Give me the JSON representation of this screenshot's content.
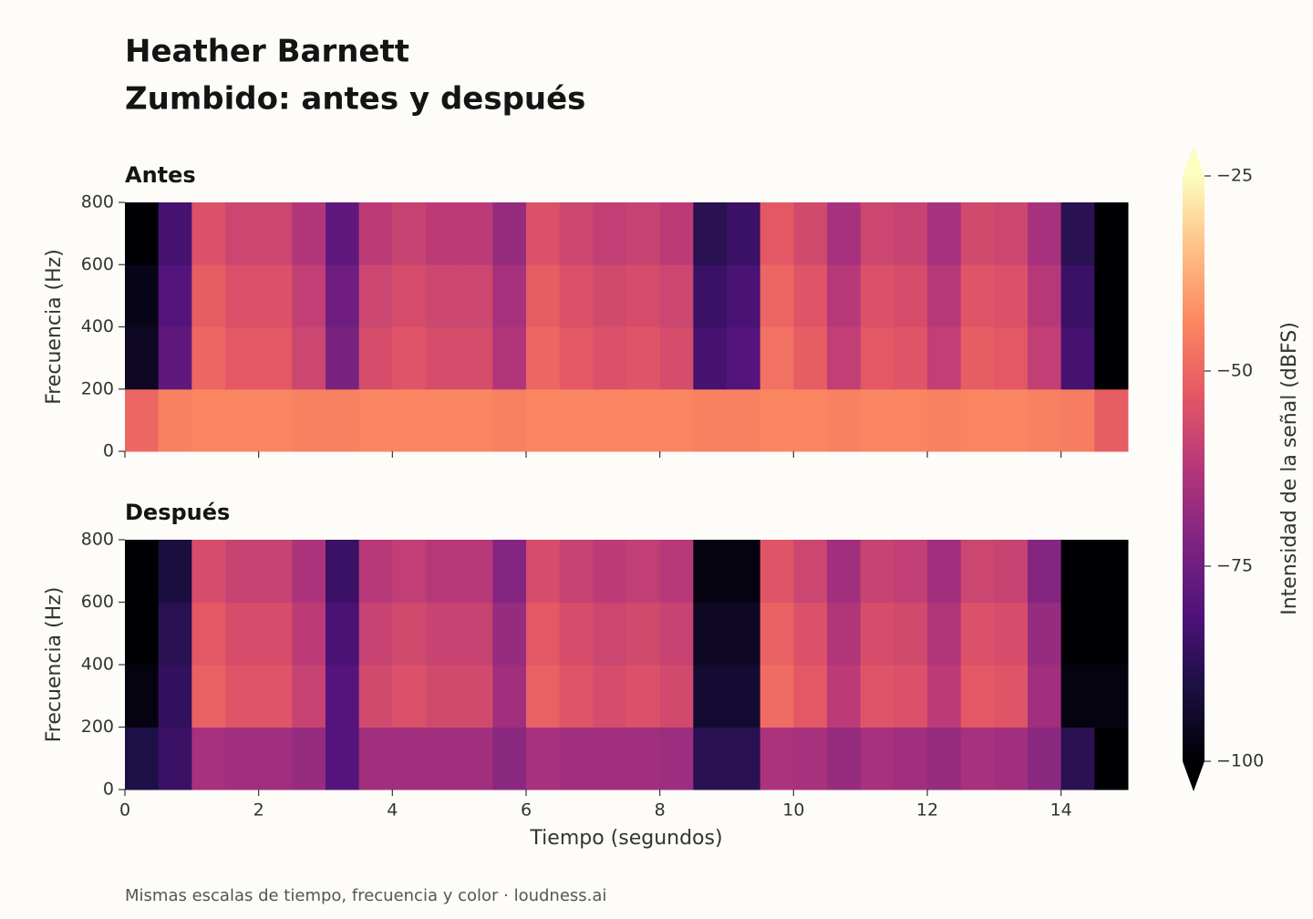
{
  "title": "Heather Barnett",
  "subtitle": "Zumbido: antes y después",
  "footer": "Mismas escalas de tiempo, frecuencia y color  ·  loudness.ai",
  "colorbar": {
    "label": "Intensidad de la señal (dBFS)",
    "cmap": "magma",
    "clim": [
      -100,
      -25
    ],
    "ticks": [
      {
        "value": -25,
        "label": "−25"
      },
      {
        "value": -50,
        "label": "−50"
      },
      {
        "value": -75,
        "label": "−75"
      },
      {
        "value": -100,
        "label": "−100"
      }
    ]
  },
  "chart_data": [
    {
      "type": "heatmap",
      "title": "Antes",
      "ylabel": "Frecuencia (Hz)",
      "xtick_labels": false,
      "bins": [
        0,
        0.5,
        1,
        1.5,
        2,
        2.5,
        3,
        3.5,
        4,
        4.5,
        5,
        5.5,
        6,
        6.5,
        7,
        7.5,
        8,
        8.5,
        9,
        9.5,
        10,
        10.5,
        11,
        11.5,
        12,
        12.5,
        13,
        13.5,
        14,
        14.5,
        15
      ],
      "ybins": [
        0,
        200,
        400,
        600,
        800
      ],
      "values": [
        [
          -50,
          -45,
          -44,
          -44,
          -44,
          -45,
          -45,
          -44,
          -44,
          -44,
          -44,
          -45,
          -44,
          -44,
          -44,
          -44,
          -44,
          -45,
          -45,
          -44,
          -44,
          -45,
          -44,
          -44,
          -45,
          -44,
          -44,
          -45,
          -46,
          -52
        ],
        [
          -95,
          -78,
          -50,
          -53,
          -53,
          -58,
          -73,
          -56,
          -54,
          -56,
          -56,
          -63,
          -50,
          -53,
          -55,
          -54,
          -56,
          -83,
          -80,
          -48,
          -52,
          -60,
          -53,
          -54,
          -60,
          -52,
          -53,
          -60,
          -83,
          -100
        ],
        [
          -97,
          -80,
          -52,
          -55,
          -55,
          -60,
          -75,
          -58,
          -56,
          -58,
          -58,
          -65,
          -52,
          -55,
          -57,
          -56,
          -58,
          -85,
          -82,
          -50,
          -54,
          -62,
          -55,
          -56,
          -62,
          -54,
          -55,
          -62,
          -85,
          -100
        ],
        [
          -100,
          -83,
          -55,
          -58,
          -58,
          -63,
          -78,
          -61,
          -59,
          -61,
          -61,
          -68,
          -55,
          -58,
          -60,
          -59,
          -61,
          -88,
          -85,
          -53,
          -57,
          -65,
          -58,
          -59,
          -65,
          -57,
          -58,
          -65,
          -88,
          -100
        ]
      ],
      "xlim": [
        0,
        15
      ],
      "xticks": [
        0,
        2,
        4,
        6,
        8,
        10,
        12,
        14
      ],
      "ylim": [
        0,
        800
      ],
      "yticks": [
        0,
        200,
        400,
        600,
        800
      ]
    },
    {
      "type": "heatmap",
      "title": "Después",
      "ylabel": "Frecuencia (Hz)",
      "xlabel": "Tiempo (segundos)",
      "xtick_labels": true,
      "bins": [
        0,
        0.5,
        1,
        1.5,
        2,
        2.5,
        3,
        3.5,
        4,
        4.5,
        5,
        5.5,
        6,
        6.5,
        7,
        7.5,
        8,
        8.5,
        9,
        9.5,
        10,
        10.5,
        11,
        11.5,
        12,
        12.5,
        13,
        13.5,
        14,
        14.5,
        15
      ],
      "ybins": [
        0,
        200,
        400,
        600,
        800
      ],
      "values": [
        [
          -90,
          -85,
          -65,
          -66,
          -66,
          -68,
          -80,
          -66,
          -66,
          -66,
          -66,
          -70,
          -65,
          -66,
          -66,
          -66,
          -67,
          -88,
          -88,
          -64,
          -65,
          -68,
          -65,
          -66,
          -68,
          -65,
          -66,
          -70,
          -88,
          -100
        ],
        [
          -98,
          -86,
          -51,
          -54,
          -54,
          -59,
          -80,
          -57,
          -55,
          -57,
          -57,
          -66,
          -51,
          -54,
          -56,
          -55,
          -57,
          -93,
          -93,
          -49,
          -53,
          -61,
          -54,
          -55,
          -61,
          -53,
          -54,
          -66,
          -98,
          -98
        ],
        [
          -100,
          -88,
          -53,
          -56,
          -56,
          -61,
          -82,
          -59,
          -57,
          -59,
          -59,
          -68,
          -53,
          -56,
          -58,
          -57,
          -59,
          -95,
          -95,
          -51,
          -55,
          -63,
          -56,
          -57,
          -63,
          -55,
          -56,
          -68,
          -100,
          -100
        ],
        [
          -100,
          -91,
          -56,
          -59,
          -59,
          -64,
          -85,
          -62,
          -60,
          -62,
          -62,
          -71,
          -56,
          -59,
          -61,
          -60,
          -62,
          -98,
          -98,
          -54,
          -58,
          -66,
          -59,
          -60,
          -66,
          -58,
          -59,
          -71,
          -100,
          -100
        ]
      ],
      "xlim": [
        0,
        15
      ],
      "xticks": [
        0,
        2,
        4,
        6,
        8,
        10,
        12,
        14
      ],
      "ylim": [
        0,
        800
      ],
      "yticks": [
        0,
        200,
        400,
        600,
        800
      ]
    }
  ]
}
